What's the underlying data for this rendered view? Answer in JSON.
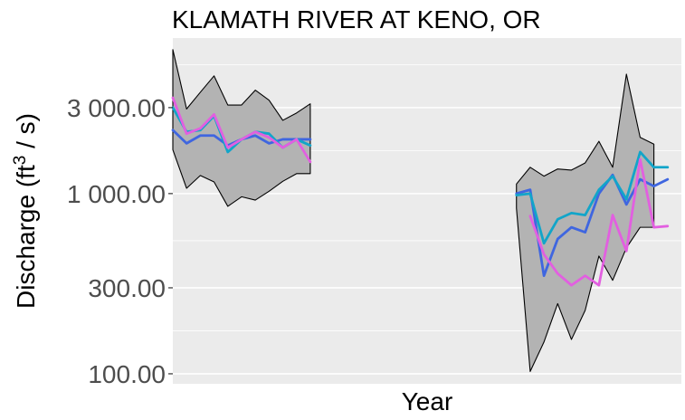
{
  "chart_data": {
    "type": "line",
    "title": "KLAMATH RIVER AT KENO, OR",
    "xlabel": "Year",
    "ylabel_main": "Discharge (ft",
    "ylabel_sup": "3",
    "ylabel_tail": " / s)",
    "y_scale": "log",
    "ylim": [
      88,
      7300
    ],
    "xlim": [
      0,
      37
    ],
    "y_ticks": [
      {
        "value": 100,
        "label": "100.00"
      },
      {
        "value": 300,
        "label": "300.00"
      },
      {
        "value": 1000,
        "label": "1 000.00"
      },
      {
        "value": 3000,
        "label": "3 000.00"
      }
    ],
    "grid": true,
    "legend": "none",
    "colors": {
      "panel": "#ebebeb",
      "grid": "#ffffff",
      "ribbon_fill": "#b3b3b3",
      "ribbon_edge": "#000000",
      "series": [
        "#3f66e0",
        "#12a5c9",
        "#e25fe0"
      ]
    },
    "ribbon": {
      "upper": [
        6300,
        2950,
        3650,
        4500,
        3100,
        3100,
        3750,
        3300,
        2550,
        2800,
        3150,
        null,
        null,
        null,
        null,
        null,
        null,
        null,
        null,
        null,
        null,
        null,
        null,
        null,
        null,
        1130,
        1400,
        1250,
        1370,
        1350,
        1480,
        1950,
        1400,
        4600,
        2050,
        1880
      ],
      "lower": [
        1750,
        1070,
        1260,
        1160,
        850,
        960,
        920,
        1030,
        1170,
        1290,
        1290,
        null,
        null,
        null,
        null,
        null,
        null,
        null,
        null,
        null,
        null,
        null,
        null,
        null,
        null,
        830,
        103,
        150,
        245,
        155,
        225,
        450,
        330,
        500,
        650,
        650
      ]
    },
    "series": [
      {
        "values": [
          2250,
          1900,
          2100,
          2100,
          1850,
          2000,
          2100,
          1900,
          2000,
          2000,
          2000,
          null,
          null,
          null,
          null,
          null,
          null,
          null,
          null,
          null,
          null,
          null,
          null,
          null,
          null,
          1000,
          1050,
          350,
          560,
          650,
          610,
          1000,
          1270,
          870,
          1200,
          1100,
          1200
        ]
      },
      {
        "values": [
          3000,
          2200,
          2250,
          2700,
          1700,
          2000,
          2200,
          2150,
          1800,
          2000,
          1850,
          null,
          null,
          null,
          null,
          null,
          null,
          null,
          null,
          null,
          null,
          null,
          null,
          null,
          null,
          980,
          1000,
          530,
          720,
          780,
          760,
          1050,
          1250,
          930,
          1700,
          1400,
          1400
        ]
      },
      {
        "values": [
          3400,
          2150,
          2300,
          2750,
          1800,
          2000,
          2200,
          2050,
          1800,
          2000,
          1500,
          null,
          null,
          null,
          null,
          null,
          null,
          null,
          null,
          null,
          null,
          null,
          null,
          null,
          null,
          null,
          750,
          460,
          360,
          310,
          350,
          310,
          760,
          480,
          1550,
          650,
          660
        ]
      }
    ]
  }
}
